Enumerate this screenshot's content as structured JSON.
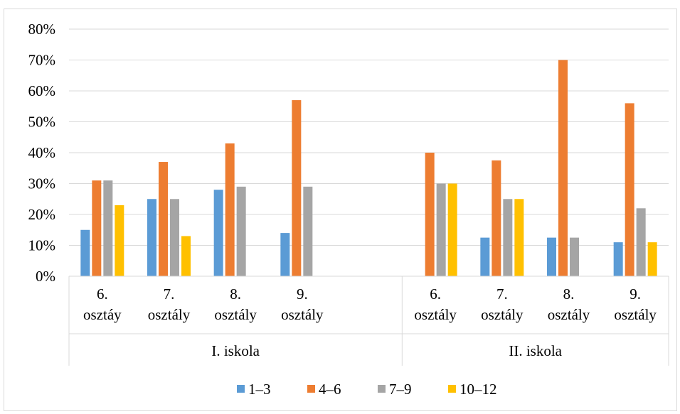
{
  "chart_data": {
    "type": "bar",
    "ylim": [
      0,
      80
    ],
    "yticks": [
      "0%",
      "10%",
      "20%",
      "30%",
      "40%",
      "50%",
      "60%",
      "70%",
      "80%"
    ],
    "grid": true,
    "legend_position": "bottom",
    "groups": [
      {
        "label": "I. iskola",
        "categories": [
          {
            "line1": "6.",
            "line2": "osztáy"
          },
          {
            "line1": "7.",
            "line2": "osztály"
          },
          {
            "line1": "8.",
            "line2": "osztály"
          },
          {
            "line1": "9.",
            "line2": "osztály"
          },
          {
            "line1": "",
            "line2": ""
          }
        ]
      },
      {
        "label": "II. iskola",
        "categories": [
          {
            "line1": "6.",
            "line2": "osztály"
          },
          {
            "line1": "7.",
            "line2": "osztály"
          },
          {
            "line1": "8.",
            "line2": "osztály"
          },
          {
            "line1": "9.",
            "line2": "osztály"
          }
        ]
      }
    ],
    "series": [
      {
        "name": "1–3",
        "color": "#5b9bd5",
        "values": [
          15,
          25,
          28,
          14,
          null,
          null,
          12.5,
          12.5,
          11
        ]
      },
      {
        "name": "4–6",
        "color": "#ed7d31",
        "values": [
          31,
          37,
          43,
          57,
          null,
          40,
          37.5,
          70,
          56
        ]
      },
      {
        "name": "7–9",
        "color": "#a5a5a5",
        "values": [
          31,
          25,
          29,
          29,
          null,
          30,
          25,
          12.5,
          22
        ]
      },
      {
        "name": "10–12",
        "color": "#ffc000",
        "values": [
          23,
          13,
          null,
          null,
          null,
          30,
          25,
          null,
          11
        ]
      }
    ]
  }
}
